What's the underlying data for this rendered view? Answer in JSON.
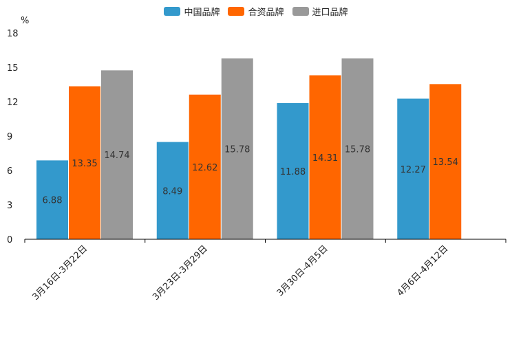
{
  "chart_data": {
    "type": "bar",
    "title": "",
    "ylabel": "%",
    "xlabel": "",
    "ylim": [
      0,
      18
    ],
    "yticks": [
      0,
      3,
      6,
      9,
      12,
      15,
      18
    ],
    "legend_position": "top-center",
    "grid": false,
    "categories": [
      "3月16日-3月22日",
      "3月23日-3月29日",
      "3月30日-4月5日",
      "4月6日-4月12日"
    ],
    "series": [
      {
        "name": "中国品牌",
        "color": "#3399cc",
        "values": [
          6.88,
          8.49,
          11.88,
          12.27
        ]
      },
      {
        "name": "合资品牌",
        "color": "#ff6600",
        "values": [
          13.35,
          12.62,
          14.31,
          13.54
        ]
      },
      {
        "name": "进口品牌",
        "color": "#999999",
        "values": [
          14.74,
          15.78,
          15.78,
          null
        ]
      }
    ]
  }
}
